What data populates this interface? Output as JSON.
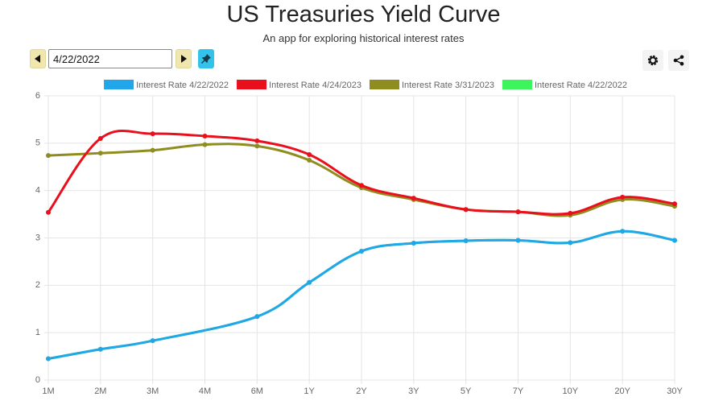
{
  "header": {
    "title": "US Treasuries Yield Curve",
    "subtitle": "An app for exploring historical interest rates"
  },
  "controls": {
    "date": "4/22/2022"
  },
  "chart_data": {
    "type": "line",
    "categories": [
      "1M",
      "2M",
      "3M",
      "4M",
      "6M",
      "1Y",
      "2Y",
      "3Y",
      "5Y",
      "7Y",
      "10Y",
      "20Y",
      "30Y"
    ],
    "series": [
      {
        "name": "Interest Rate 4/22/2022",
        "color": "#22a6ea",
        "values": [
          0.45,
          0.65,
          0.83,
          null,
          1.34,
          2.06,
          2.72,
          2.89,
          2.94,
          2.95,
          2.9,
          3.14,
          2.95
        ]
      },
      {
        "name": "Interest Rate 4/24/2023",
        "color": "#ea0f1c",
        "values": [
          3.54,
          5.1,
          5.2,
          5.15,
          5.05,
          4.76,
          4.11,
          3.84,
          3.6,
          3.55,
          3.52,
          3.86,
          3.72
        ]
      },
      {
        "name": "Interest Rate 3/31/2023",
        "color": "#8f8d1f",
        "values": [
          4.74,
          4.79,
          4.85,
          4.97,
          4.94,
          4.64,
          4.06,
          3.81,
          3.6,
          3.55,
          3.48,
          3.81,
          3.67
        ]
      },
      {
        "name": "Interest Rate 4/22/2022",
        "color": "#3cf55d",
        "values": [
          0.45,
          0.65,
          0.83,
          null,
          1.34,
          2.06,
          2.72,
          2.89,
          2.94,
          2.95,
          2.9,
          3.14,
          2.95
        ]
      }
    ],
    "ylim": [
      0,
      6
    ],
    "yticks": [
      0,
      1,
      2,
      3,
      4,
      5,
      6
    ],
    "grid": true,
    "legend": "top"
  }
}
